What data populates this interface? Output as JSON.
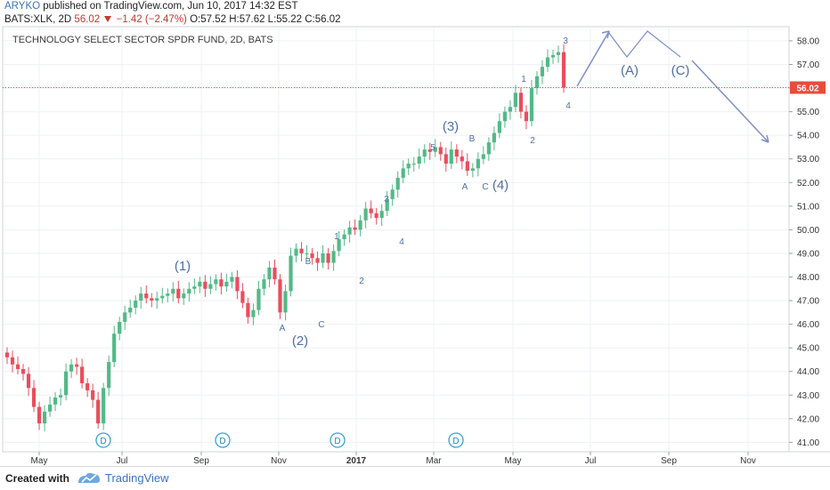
{
  "header": {
    "author": "ARYKO",
    "published": "published on TradingView.com, Jun 10, 2017 14:32 EST",
    "symbol": "BATS:XLK, 2D",
    "last": "56.02",
    "change": "−1.42 (−2.47%)",
    "ohlc": "O:57.52 H:57.62 L:55.22 C:56.02"
  },
  "chart_data": {
    "type": "candlestick",
    "title": "TECHNOLOGY SELECT SECTOR SPDR FUND, 2D, BATS",
    "x_labels": [
      "May",
      "Jul",
      "Sep",
      "Nov",
      "2017",
      "Mar",
      "May",
      "Jul",
      "Sep",
      "Nov"
    ],
    "y_ticks": [
      41,
      42,
      43,
      44,
      45,
      46,
      47,
      48,
      49,
      50,
      51,
      52,
      53,
      54,
      55,
      56,
      57,
      58
    ],
    "ylim": [
      40.6,
      58.6
    ],
    "last_price": "56.02",
    "closes": [
      44.6,
      44.3,
      44.1,
      43.9,
      43.3,
      42.5,
      41.8,
      42.3,
      42.6,
      42.9,
      43.0,
      44.0,
      44.3,
      44.2,
      43.5,
      43.2,
      42.8,
      41.8,
      43.3,
      44.4,
      45.6,
      46.1,
      46.5,
      46.7,
      47.0,
      47.3,
      47.1,
      47.0,
      47.1,
      47.2,
      47.3,
      47.5,
      47.1,
      47.3,
      47.5,
      47.6,
      47.8,
      47.5,
      47.7,
      47.9,
      47.6,
      47.8,
      48.0,
      47.4,
      46.9,
      46.3,
      46.6,
      47.5,
      47.9,
      48.4,
      47.9,
      46.5,
      47.4,
      48.9,
      49.2,
      49.0,
      49.0,
      48.8,
      48.6,
      49.0,
      48.6,
      49.1,
      49.6,
      49.8,
      50.1,
      50.0,
      50.4,
      50.9,
      50.7,
      50.5,
      50.8,
      51.3,
      51.7,
      52.2,
      52.6,
      52.8,
      52.8,
      53.1,
      53.4,
      53.3,
      53.5,
      53.2,
      52.8,
      53.4,
      53.1,
      52.9,
      52.5,
      52.6,
      53.0,
      53.2,
      53.7,
      54.1,
      54.6,
      55.0,
      55.2,
      55.8,
      55.0,
      54.6,
      56.0,
      56.5,
      56.9,
      57.3,
      57.4,
      57.52,
      56.02
    ],
    "wave_labels": [
      "(1)",
      "(2)",
      "(3)",
      "(4)",
      "A",
      "B",
      "C",
      "1",
      "2",
      "3",
      "4",
      "5",
      "A",
      "B",
      "C",
      "1",
      "2",
      "3",
      "4",
      "(A)",
      "(C)"
    ],
    "event_markers": [
      "D",
      "D",
      "D",
      "D"
    ]
  },
  "colors": {
    "up": "#53b987",
    "down": "#eb4d5c",
    "wave": "#4f6fa8",
    "projection": "#7f8fc4",
    "price_label": "#e74c3c"
  }
}
